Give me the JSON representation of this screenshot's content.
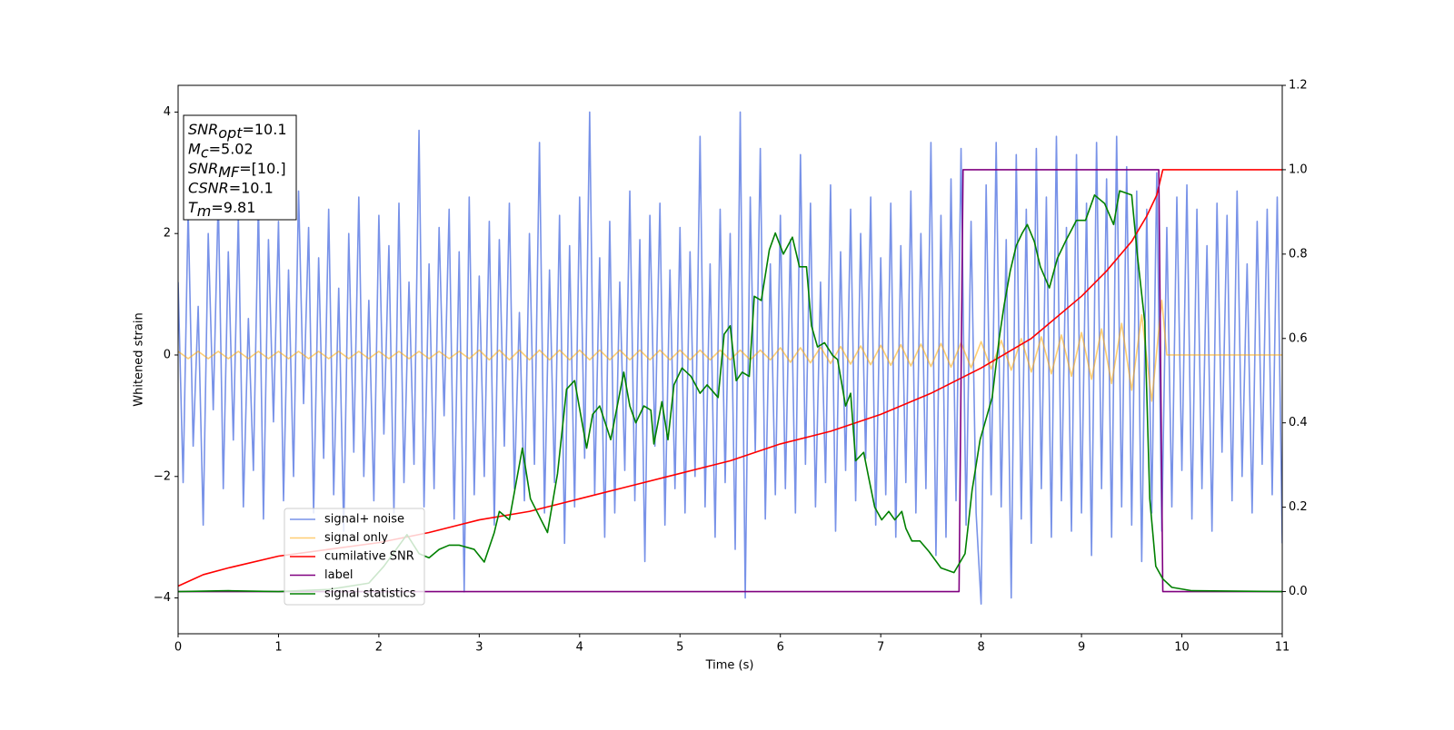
{
  "chart_data": {
    "type": "line",
    "xlabel": "Time (s)",
    "ylabel": "Whitened strain",
    "xlim": [
      0,
      11
    ],
    "xticks": [
      0,
      1,
      2,
      3,
      4,
      5,
      6,
      7,
      8,
      9,
      10,
      11
    ],
    "ylim": [
      -4.59,
      4.44
    ],
    "yticks": [
      {
        "value": -4,
        "label": "−4"
      },
      {
        "value": -2,
        "label": "−2"
      },
      0,
      2,
      4
    ],
    "y2lim": [
      -0.1,
      1.2
    ],
    "y2ticks": [
      {
        "value": 0,
        "label": "0.0"
      },
      {
        "value": 0.2,
        "label": "0.2"
      },
      {
        "value": 0.4,
        "label": "0.4"
      },
      {
        "value": 0.6,
        "label": "0.6"
      },
      {
        "value": 0.8,
        "label": "0.8"
      },
      {
        "value": 1,
        "label": "1.0"
      },
      {
        "value": 1.2,
        "label": "1.2"
      }
    ],
    "annotation": [
      {
        "main": "SNR",
        "sub": "opt",
        "rest": "=10.1"
      },
      {
        "main": "M",
        "sub": "c",
        "rest": "=5.02"
      },
      {
        "main": "SNR",
        "sub": "MF",
        "rest": "=[10.]"
      },
      {
        "main": "CSNR",
        "rest": "=10.1"
      },
      {
        "main": "T",
        "sub": "m",
        "rest": "=9.81"
      }
    ],
    "series": [
      {
        "name": "signal+ noise",
        "color": "#7892e8",
        "x": [
          0,
          0.05,
          0.1,
          0.15,
          0.2,
          0.25,
          0.3,
          0.35,
          0.4,
          0.45,
          0.5,
          0.55,
          0.6,
          0.65,
          0.7,
          0.75,
          0.8,
          0.85,
          0.9,
          0.95,
          1,
          1.05,
          1.1,
          1.15,
          1.2,
          1.25,
          1.3,
          1.35,
          1.4,
          1.45,
          1.5,
          1.55,
          1.6,
          1.65,
          1.7,
          1.75,
          1.8,
          1.85,
          1.9,
          1.95,
          2,
          2.05,
          2.1,
          2.15,
          2.2,
          2.25,
          2.3,
          2.35,
          2.4,
          2.45,
          2.5,
          2.55,
          2.6,
          2.65,
          2.7,
          2.75,
          2.8,
          2.85,
          2.9,
          2.95,
          3,
          3.05,
          3.1,
          3.15,
          3.2,
          3.25,
          3.3,
          3.35,
          3.4,
          3.45,
          3.5,
          3.55,
          3.6,
          3.65,
          3.7,
          3.75,
          3.8,
          3.85,
          3.9,
          3.95,
          4,
          4.05,
          4.1,
          4.15,
          4.2,
          4.25,
          4.3,
          4.35,
          4.4,
          4.45,
          4.5,
          4.55,
          4.6,
          4.65,
          4.7,
          4.75,
          4.8,
          4.85,
          4.9,
          4.95,
          5,
          5.05,
          5.1,
          5.15,
          5.2,
          5.25,
          5.3,
          5.35,
          5.4,
          5.45,
          5.5,
          5.55,
          5.6,
          5.65,
          5.7,
          5.75,
          5.8,
          5.85,
          5.9,
          5.95,
          6,
          6.05,
          6.1,
          6.15,
          6.2,
          6.25,
          6.3,
          6.35,
          6.4,
          6.45,
          6.5,
          6.55,
          6.6,
          6.65,
          6.7,
          6.75,
          6.8,
          6.85,
          6.9,
          6.95,
          7,
          7.05,
          7.1,
          7.15,
          7.2,
          7.25,
          7.3,
          7.35,
          7.4,
          7.45,
          7.5,
          7.55,
          7.6,
          7.65,
          7.7,
          7.75,
          7.8,
          7.85,
          7.9,
          7.95,
          8,
          8.05,
          8.1,
          8.15,
          8.2,
          8.25,
          8.3,
          8.35,
          8.4,
          8.45,
          8.5,
          8.55,
          8.6,
          8.65,
          8.7,
          8.75,
          8.8,
          8.85,
          8.9,
          8.95,
          9,
          9.05,
          9.1,
          9.15,
          9.2,
          9.25,
          9.3,
          9.35,
          9.4,
          9.45,
          9.5,
          9.55,
          9.6,
          9.65,
          9.7,
          9.75,
          9.8,
          9.85,
          9.9,
          9.95,
          10,
          10.05,
          10.1,
          10.15,
          10.2,
          10.25,
          10.3,
          10.35,
          10.4,
          10.45,
          10.5,
          10.55,
          10.6,
          10.65,
          10.7,
          10.75,
          10.8,
          10.85,
          10.9,
          10.95,
          11
        ],
        "values": [
          1.2,
          -2.1,
          2.4,
          -1.5,
          0.8,
          -2.8,
          2.0,
          -0.9,
          2.6,
          -2.2,
          1.7,
          -1.4,
          2.3,
          -2.5,
          0.6,
          -1.9,
          2.5,
          -2.7,
          1.9,
          -1.1,
          2.2,
          -2.4,
          1.4,
          -2.0,
          2.7,
          -0.8,
          2.1,
          -2.6,
          1.6,
          -1.7,
          2.4,
          -2.3,
          1.1,
          -2.9,
          2.0,
          -1.6,
          2.6,
          -2.0,
          0.9,
          -2.4,
          2.3,
          -1.3,
          1.8,
          -2.6,
          2.5,
          -2.1,
          1.2,
          -1.8,
          3.7,
          -2.5,
          1.5,
          -2.2,
          2.1,
          -1.0,
          2.4,
          -2.7,
          1.7,
          -3.9,
          2.6,
          -2.3,
          1.3,
          -2.0,
          2.2,
          -2.8,
          1.9,
          -1.5,
          2.5,
          -2.2,
          0.7,
          -2.4,
          2.0,
          -1.8,
          3.5,
          -2.6,
          1.4,
          -2.1,
          2.3,
          -3.1,
          1.8,
          -2.5,
          2.6,
          -1.7,
          4.0,
          -2.3,
          1.6,
          -3.0,
          2.2,
          -2.6,
          1.2,
          -1.9,
          2.7,
          -2.4,
          1.9,
          -3.4,
          2.3,
          -1.5,
          2.5,
          -2.8,
          1.4,
          -2.2,
          2.1,
          -2.6,
          1.7,
          -2.0,
          3.6,
          -2.5,
          1.5,
          -3.0,
          2.4,
          -2.1,
          2.0,
          -3.2,
          4.0,
          -4.0,
          2.6,
          -1.6,
          3.4,
          -2.7,
          1.5,
          -2.3,
          2.3,
          -2.2,
          1.9,
          -2.6,
          3.3,
          -1.8,
          2.5,
          -2.5,
          1.2,
          -2.1,
          2.8,
          -2.9,
          1.7,
          -1.9,
          2.4,
          -2.4,
          2.0,
          -1.7,
          2.6,
          -2.8,
          1.6,
          -2.3,
          2.5,
          -3.0,
          1.8,
          -2.1,
          2.7,
          -2.6,
          2.0,
          -2.2,
          3.5,
          -3.3,
          2.3,
          -3.0,
          2.9,
          -2.4,
          3.4,
          -2.8,
          2.2,
          -2.6,
          -4.1,
          2.8,
          -2.3,
          3.5,
          -2.5,
          1.9,
          -4.0,
          3.3,
          -2.7,
          2.4,
          -3.1,
          3.4,
          -2.2,
          2.6,
          -3.0,
          3.6,
          -2.4,
          2.1,
          -2.9,
          3.3,
          -2.6,
          2.5,
          -3.3,
          3.5,
          -2.2,
          2.9,
          -3.0,
          3.6,
          -2.5,
          3.1,
          -2.8,
          2.7,
          -3.4,
          2.4,
          -2.6,
          3.0,
          -2.9,
          2.1,
          -2.5,
          2.6,
          -1.9,
          2.8,
          -2.7,
          2.4,
          -2.2,
          1.8,
          -2.9,
          2.5,
          -1.6,
          2.3,
          -2.4,
          2.7,
          -2.0,
          1.5,
          -2.6,
          2.2,
          -1.8,
          2.4,
          -2.3,
          2.6,
          -3.1
        ]
      },
      {
        "name": "signal only",
        "color": "#ffa500",
        "x": [
          0,
          0.1,
          0.2,
          0.3,
          0.4,
          0.5,
          0.6,
          0.7,
          0.8,
          0.9,
          1,
          1.1,
          1.2,
          1.3,
          1.4,
          1.5,
          1.6,
          1.7,
          1.8,
          1.9,
          2,
          2.1,
          2.2,
          2.3,
          2.4,
          2.5,
          2.6,
          2.7,
          2.8,
          2.9,
          3,
          3.1,
          3.2,
          3.3,
          3.4,
          3.5,
          3.6,
          3.7,
          3.8,
          3.9,
          4,
          4.1,
          4.2,
          4.3,
          4.4,
          4.5,
          4.6,
          4.7,
          4.8,
          4.9,
          5,
          5.1,
          5.2,
          5.3,
          5.4,
          5.5,
          5.6,
          5.7,
          5.8,
          5.9,
          6,
          6.1,
          6.2,
          6.3,
          6.4,
          6.5,
          6.6,
          6.7,
          6.8,
          6.9,
          7,
          7.1,
          7.2,
          7.3,
          7.4,
          7.5,
          7.6,
          7.7,
          7.8,
          7.9,
          8,
          8.1,
          8.2,
          8.3,
          8.4,
          8.5,
          8.6,
          8.7,
          8.8,
          8.9,
          9,
          9.1,
          9.2,
          9.3,
          9.4,
          9.5,
          9.6,
          9.7,
          9.8,
          9.85,
          11
        ],
        "values": [
          0.06,
          -0.06,
          0.06,
          -0.06,
          0.06,
          -0.06,
          0.06,
          -0.06,
          0.06,
          -0.06,
          0.06,
          -0.06,
          0.06,
          -0.06,
          0.06,
          -0.06,
          0.06,
          -0.06,
          0.06,
          -0.06,
          0.06,
          -0.06,
          0.06,
          -0.06,
          0.06,
          -0.06,
          0.06,
          -0.06,
          0.06,
          -0.06,
          0.08,
          -0.08,
          0.08,
          -0.08,
          0.08,
          -0.08,
          0.08,
          -0.08,
          0.08,
          -0.08,
          0.08,
          -0.08,
          0.08,
          -0.08,
          0.08,
          -0.08,
          0.08,
          -0.08,
          0.08,
          -0.08,
          0.08,
          -0.08,
          0.08,
          -0.08,
          0.08,
          -0.08,
          0.08,
          -0.08,
          0.08,
          -0.08,
          0.12,
          -0.12,
          0.12,
          -0.13,
          0.13,
          -0.14,
          0.14,
          -0.15,
          0.15,
          -0.16,
          0.16,
          -0.17,
          0.17,
          -0.18,
          0.18,
          -0.19,
          0.19,
          -0.2,
          0.2,
          -0.21,
          0.22,
          -0.23,
          0.24,
          -0.25,
          0.27,
          -0.28,
          0.3,
          -0.31,
          0.33,
          -0.35,
          0.37,
          -0.4,
          0.43,
          -0.47,
          0.52,
          -0.58,
          0.66,
          -0.76,
          0.9,
          0,
          0
        ]
      },
      {
        "name": "cumilative SNR",
        "color": "#ff0000",
        "axis": "y2",
        "x": [
          0,
          0.25,
          0.5,
          1,
          1.5,
          2,
          2.5,
          3,
          3.5,
          4,
          4.5,
          5,
          5.5,
          6,
          6.5,
          7,
          7.5,
          8,
          8.5,
          9,
          9.25,
          9.5,
          9.65,
          9.75,
          9.81,
          11
        ],
        "values": [
          0.013,
          0.04,
          0.056,
          0.084,
          0.1,
          0.116,
          0.14,
          0.17,
          0.19,
          0.22,
          0.25,
          0.28,
          0.31,
          0.35,
          0.38,
          0.42,
          0.47,
          0.53,
          0.6,
          0.7,
          0.76,
          0.83,
          0.89,
          0.94,
          1.0,
          1.0
        ]
      },
      {
        "name": "label",
        "color": "#800080",
        "axis": "y2",
        "x": [
          0,
          7.78,
          7.82,
          9.77,
          9.81,
          11
        ],
        "values": [
          0,
          0,
          1,
          1,
          0,
          0
        ]
      },
      {
        "name": "signal statistics",
        "color": "#008000",
        "axis": "y2",
        "x": [
          0,
          0.5,
          1,
          1.5,
          1.9,
          2.05,
          2.28,
          2.4,
          2.5,
          2.6,
          2.7,
          2.8,
          2.95,
          3.05,
          3.15,
          3.2,
          3.3,
          3.43,
          3.51,
          3.68,
          3.78,
          3.87,
          3.95,
          4.07,
          4.13,
          4.2,
          4.31,
          4.44,
          4.5,
          4.56,
          4.64,
          4.71,
          4.74,
          4.82,
          4.88,
          4.94,
          5.02,
          5.11,
          5.2,
          5.27,
          5.38,
          5.44,
          5.5,
          5.56,
          5.62,
          5.69,
          5.74,
          5.81,
          5.89,
          5.95,
          6.03,
          6.12,
          6.19,
          6.26,
          6.31,
          6.37,
          6.44,
          6.52,
          6.57,
          6.65,
          6.7,
          6.75,
          6.83,
          6.88,
          6.94,
          7.01,
          7.08,
          7.14,
          7.21,
          7.25,
          7.31,
          7.39,
          7.48,
          7.6,
          7.73,
          7.84,
          7.91,
          7.99,
          8.05,
          8.11,
          8.18,
          8.23,
          8.29,
          8.35,
          8.41,
          8.46,
          8.53,
          8.59,
          8.68,
          8.76,
          8.84,
          8.95,
          9.04,
          9.13,
          9.23,
          9.32,
          9.38,
          9.5,
          9.56,
          9.63,
          9.68,
          9.74,
          9.81,
          9.9,
          10.1,
          11
        ],
        "values": [
          0,
          0.002,
          0,
          0.005,
          0.02,
          0.06,
          0.135,
          0.09,
          0.08,
          0.1,
          0.11,
          0.11,
          0.1,
          0.07,
          0.14,
          0.19,
          0.17,
          0.34,
          0.22,
          0.14,
          0.28,
          0.48,
          0.5,
          0.34,
          0.42,
          0.44,
          0.36,
          0.52,
          0.44,
          0.4,
          0.44,
          0.43,
          0.35,
          0.45,
          0.36,
          0.49,
          0.53,
          0.51,
          0.47,
          0.49,
          0.46,
          0.61,
          0.63,
          0.5,
          0.52,
          0.51,
          0.7,
          0.69,
          0.81,
          0.85,
          0.8,
          0.84,
          0.77,
          0.77,
          0.63,
          0.58,
          0.59,
          0.56,
          0.55,
          0.44,
          0.47,
          0.31,
          0.33,
          0.27,
          0.2,
          0.17,
          0.19,
          0.17,
          0.19,
          0.15,
          0.12,
          0.12,
          0.095,
          0.056,
          0.045,
          0.09,
          0.24,
          0.36,
          0.41,
          0.46,
          0.6,
          0.68,
          0.76,
          0.82,
          0.85,
          0.87,
          0.83,
          0.77,
          0.72,
          0.79,
          0.83,
          0.88,
          0.88,
          0.94,
          0.92,
          0.87,
          0.95,
          0.94,
          0.79,
          0.64,
          0.22,
          0.06,
          0.03,
          0.01,
          0.002,
          0
        ]
      }
    ]
  }
}
